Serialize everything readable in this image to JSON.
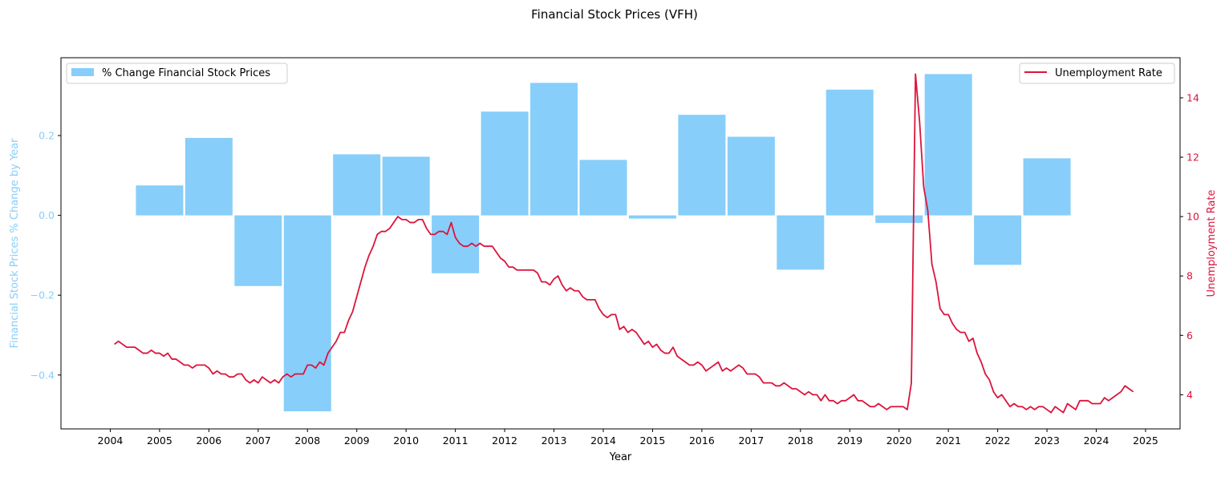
{
  "chart_data": {
    "type": "bar+line",
    "title": "Financial Stock Prices (VFH)",
    "xlabel": "Year",
    "ylabel_left": "Financial Stock Prices % Change by Year",
    "ylabel_right": "Unemployment Rate",
    "xlim": [
      2003.0,
      2025.7
    ],
    "ylim_left": [
      -0.535,
      0.395
    ],
    "ylim_right": [
      2.85,
      15.35
    ],
    "x_ticks": [
      2004,
      2005,
      2006,
      2007,
      2008,
      2009,
      2010,
      2011,
      2012,
      2013,
      2014,
      2015,
      2016,
      2017,
      2018,
      2019,
      2020,
      2021,
      2022,
      2023,
      2024,
      2025
    ],
    "y_ticks_left": [
      0.2,
      0.0,
      -0.2,
      -0.4
    ],
    "y_tick_labels_left": [
      "0.2",
      "0.0",
      "−0.2",
      "−0.4"
    ],
    "y_ticks_right": [
      4,
      6,
      8,
      10,
      12,
      14
    ],
    "legend_left": {
      "label": "% Change Financial Stock Prices",
      "placement": "upper-left"
    },
    "legend_right": {
      "label": "Unemployment Rate",
      "placement": "upper-right"
    },
    "colors": {
      "bars": "#87CEFA",
      "line": "#DC143C",
      "left_axis": "#87CEFA",
      "right_axis": "#DC143C"
    },
    "bars": {
      "centers": [
        2005.0,
        2006.0,
        2007.0,
        2008.0,
        2009.0,
        2010.0,
        2011.0,
        2012.0,
        2013.0,
        2014.0,
        2015.0,
        2016.0,
        2017.0,
        2018.0,
        2019.0,
        2020.0,
        2021.0,
        2022.0,
        2023.0
      ],
      "width": 0.96,
      "values": [
        0.075,
        0.194,
        -0.177,
        -0.491,
        0.153,
        0.147,
        -0.145,
        0.26,
        0.332,
        0.139,
        -0.008,
        0.252,
        0.197,
        -0.136,
        0.315,
        -0.019,
        0.354,
        -0.124,
        0.143
      ]
    },
    "unemployment": {
      "start_year": 2004.083,
      "step_months": 1,
      "values": [
        5.7,
        5.8,
        5.7,
        5.6,
        5.6,
        5.6,
        5.5,
        5.4,
        5.4,
        5.5,
        5.4,
        5.4,
        5.3,
        5.4,
        5.2,
        5.2,
        5.1,
        5.0,
        5.0,
        4.9,
        5.0,
        5.0,
        5.0,
        4.9,
        4.7,
        4.8,
        4.7,
        4.7,
        4.6,
        4.6,
        4.7,
        4.7,
        4.5,
        4.4,
        4.5,
        4.4,
        4.6,
        4.5,
        4.4,
        4.5,
        4.4,
        4.6,
        4.7,
        4.6,
        4.7,
        4.7,
        4.7,
        5.0,
        5.0,
        4.9,
        5.1,
        5.0,
        5.4,
        5.6,
        5.8,
        6.1,
        6.1,
        6.5,
        6.8,
        7.3,
        7.8,
        8.3,
        8.7,
        9.0,
        9.4,
        9.5,
        9.5,
        9.6,
        9.8,
        10.0,
        9.9,
        9.9,
        9.8,
        9.8,
        9.9,
        9.9,
        9.6,
        9.4,
        9.4,
        9.5,
        9.5,
        9.4,
        9.8,
        9.3,
        9.1,
        9.0,
        9.0,
        9.1,
        9.0,
        9.1,
        9.0,
        9.0,
        9.0,
        8.8,
        8.6,
        8.5,
        8.3,
        8.3,
        8.2,
        8.2,
        8.2,
        8.2,
        8.2,
        8.1,
        7.8,
        7.8,
        7.7,
        7.9,
        8.0,
        7.7,
        7.5,
        7.6,
        7.5,
        7.5,
        7.3,
        7.2,
        7.2,
        7.2,
        6.9,
        6.7,
        6.6,
        6.7,
        6.7,
        6.2,
        6.3,
        6.1,
        6.2,
        6.1,
        5.9,
        5.7,
        5.8,
        5.6,
        5.7,
        5.5,
        5.4,
        5.4,
        5.6,
        5.3,
        5.2,
        5.1,
        5.0,
        5.0,
        5.1,
        5.0,
        4.8,
        4.9,
        5.0,
        5.1,
        4.8,
        4.9,
        4.8,
        4.9,
        5.0,
        4.9,
        4.7,
        4.7,
        4.7,
        4.6,
        4.4,
        4.4,
        4.4,
        4.3,
        4.3,
        4.4,
        4.3,
        4.2,
        4.2,
        4.1,
        4.0,
        4.1,
        4.0,
        4.0,
        3.8,
        4.0,
        3.8,
        3.8,
        3.7,
        3.8,
        3.8,
        3.9,
        4.0,
        3.8,
        3.8,
        3.7,
        3.6,
        3.6,
        3.7,
        3.6,
        3.5,
        3.6,
        3.6,
        3.6,
        3.6,
        3.5,
        4.4,
        14.8,
        13.2,
        11.0,
        10.2,
        8.4,
        7.8,
        6.9,
        6.7,
        6.7,
        6.4,
        6.2,
        6.1,
        6.1,
        5.8,
        5.9,
        5.4,
        5.1,
        4.7,
        4.5,
        4.1,
        3.9,
        4.0,
        3.8,
        3.6,
        3.7,
        3.6,
        3.6,
        3.5,
        3.6,
        3.5,
        3.6,
        3.6,
        3.5,
        3.4,
        3.6,
        3.5,
        3.4,
        3.7,
        3.6,
        3.5,
        3.8,
        3.8,
        3.8,
        3.7,
        3.7,
        3.7,
        3.9,
        3.8,
        3.9,
        4.0,
        4.1,
        4.3,
        4.2,
        4.1
      ]
    }
  }
}
